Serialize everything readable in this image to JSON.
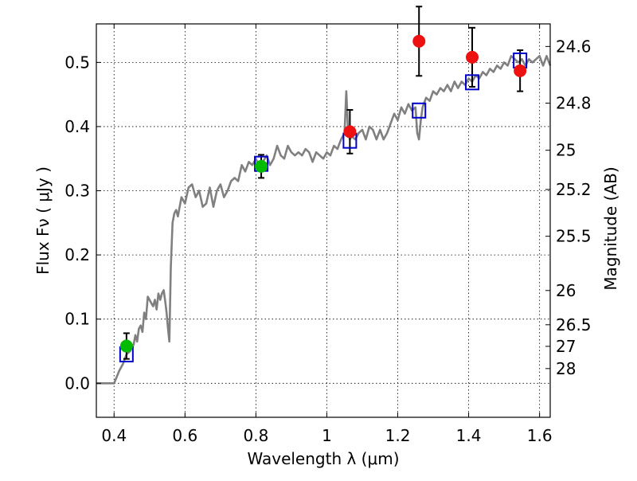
{
  "chart_data": {
    "type": "scatter",
    "xlabel": "Wavelength  λ (μm)",
    "ylabel": "Flux  Fν  ( μJy )",
    "y2label": "Magnitude (AB)",
    "xlim": [
      0.35,
      1.63
    ],
    "ylim": [
      -0.053,
      0.56
    ],
    "grid": true,
    "x_ticks": [
      0.4,
      0.6,
      0.8,
      1.0,
      1.2,
      1.4,
      1.6
    ],
    "x_tick_labels": [
      "0.4",
      "0.6",
      "0.8",
      "1",
      "1.2",
      "1.4",
      "1.6"
    ],
    "y_ticks": [
      0.0,
      0.1,
      0.2,
      0.3,
      0.4,
      0.5
    ],
    "y_tick_labels": [
      "0.0",
      "0.1",
      "0.2",
      "0.3",
      "0.4",
      "0.5"
    ],
    "mag_ticks": [
      24.6,
      24.8,
      25,
      25.2,
      25.5,
      26,
      26.5,
      27,
      28
    ],
    "mag_tick_labels": [
      "24.6",
      "24.8",
      "25",
      "25.2",
      "25.5",
      "26",
      "26.5",
      "27",
      "28"
    ],
    "series": [
      {
        "kind": "line",
        "color": "#808080",
        "x": [
          0.35,
          0.4,
          0.415,
          0.425,
          0.435,
          0.445,
          0.455,
          0.46,
          0.465,
          0.47,
          0.475,
          0.48,
          0.485,
          0.49,
          0.495,
          0.5,
          0.505,
          0.51,
          0.515,
          0.52,
          0.525,
          0.53,
          0.535,
          0.54,
          0.545,
          0.548,
          0.552,
          0.556,
          0.56,
          0.565,
          0.57,
          0.575,
          0.58,
          0.59,
          0.6,
          0.61,
          0.62,
          0.63,
          0.64,
          0.65,
          0.66,
          0.67,
          0.68,
          0.69,
          0.7,
          0.71,
          0.72,
          0.73,
          0.74,
          0.75,
          0.76,
          0.77,
          0.78,
          0.79,
          0.8,
          0.81,
          0.82,
          0.83,
          0.84,
          0.85,
          0.86,
          0.87,
          0.88,
          0.89,
          0.9,
          0.91,
          0.92,
          0.93,
          0.94,
          0.95,
          0.96,
          0.97,
          0.98,
          0.99,
          1.0,
          1.01,
          1.02,
          1.03,
          1.04,
          1.05,
          1.055,
          1.06,
          1.065,
          1.07,
          1.08,
          1.09,
          1.1,
          1.11,
          1.12,
          1.13,
          1.14,
          1.15,
          1.16,
          1.17,
          1.18,
          1.19,
          1.2,
          1.21,
          1.22,
          1.23,
          1.24,
          1.25,
          1.255,
          1.26,
          1.265,
          1.27,
          1.28,
          1.29,
          1.3,
          1.31,
          1.32,
          1.33,
          1.34,
          1.35,
          1.36,
          1.37,
          1.38,
          1.39,
          1.4,
          1.41,
          1.42,
          1.43,
          1.44,
          1.45,
          1.46,
          1.47,
          1.48,
          1.49,
          1.5,
          1.51,
          1.52,
          1.53,
          1.54,
          1.55,
          1.56,
          1.57,
          1.58,
          1.59,
          1.6,
          1.61,
          1.62,
          1.63
        ],
        "y": [
          0.0,
          0.0,
          0.02,
          0.03,
          0.045,
          0.05,
          0.06,
          0.075,
          0.065,
          0.085,
          0.09,
          0.08,
          0.11,
          0.1,
          0.135,
          0.13,
          0.125,
          0.12,
          0.13,
          0.115,
          0.14,
          0.13,
          0.14,
          0.145,
          0.125,
          0.11,
          0.085,
          0.065,
          0.18,
          0.25,
          0.265,
          0.27,
          0.26,
          0.29,
          0.28,
          0.305,
          0.31,
          0.29,
          0.3,
          0.275,
          0.28,
          0.305,
          0.275,
          0.3,
          0.31,
          0.29,
          0.3,
          0.315,
          0.32,
          0.315,
          0.34,
          0.33,
          0.345,
          0.34,
          0.35,
          0.335,
          0.345,
          0.355,
          0.34,
          0.35,
          0.37,
          0.355,
          0.35,
          0.37,
          0.36,
          0.355,
          0.36,
          0.355,
          0.365,
          0.36,
          0.345,
          0.36,
          0.355,
          0.35,
          0.36,
          0.355,
          0.37,
          0.365,
          0.38,
          0.39,
          0.455,
          0.39,
          0.38,
          0.385,
          0.38,
          0.39,
          0.395,
          0.38,
          0.4,
          0.395,
          0.38,
          0.395,
          0.38,
          0.39,
          0.405,
          0.42,
          0.41,
          0.43,
          0.42,
          0.435,
          0.425,
          0.43,
          0.39,
          0.38,
          0.41,
          0.43,
          0.445,
          0.44,
          0.455,
          0.45,
          0.46,
          0.455,
          0.465,
          0.455,
          0.47,
          0.46,
          0.47,
          0.465,
          0.475,
          0.47,
          0.48,
          0.475,
          0.485,
          0.48,
          0.49,
          0.485,
          0.495,
          0.49,
          0.5,
          0.495,
          0.51,
          0.505,
          0.5,
          0.505,
          0.495,
          0.505,
          0.5,
          0.505,
          0.51,
          0.495,
          0.51,
          0.495
        ]
      },
      {
        "kind": "open-square",
        "color": "#0000cc",
        "x": [
          0.435,
          0.815,
          1.065,
          1.26,
          1.41,
          1.545
        ],
        "y": [
          0.045,
          0.342,
          0.378,
          0.425,
          0.469,
          0.503
        ]
      },
      {
        "kind": "point",
        "color": "#00bb00",
        "x": [
          0.435,
          0.815
        ],
        "y": [
          0.058,
          0.338
        ],
        "yerr": [
          0.02,
          0.018
        ]
      },
      {
        "kind": "point",
        "color": "#ee1111",
        "x": [
          1.065,
          1.26,
          1.41,
          1.545
        ],
        "y": [
          0.392,
          0.533,
          0.508,
          0.487
        ],
        "yerr": [
          0.034,
          0.054,
          0.046,
          0.032
        ]
      }
    ]
  }
}
